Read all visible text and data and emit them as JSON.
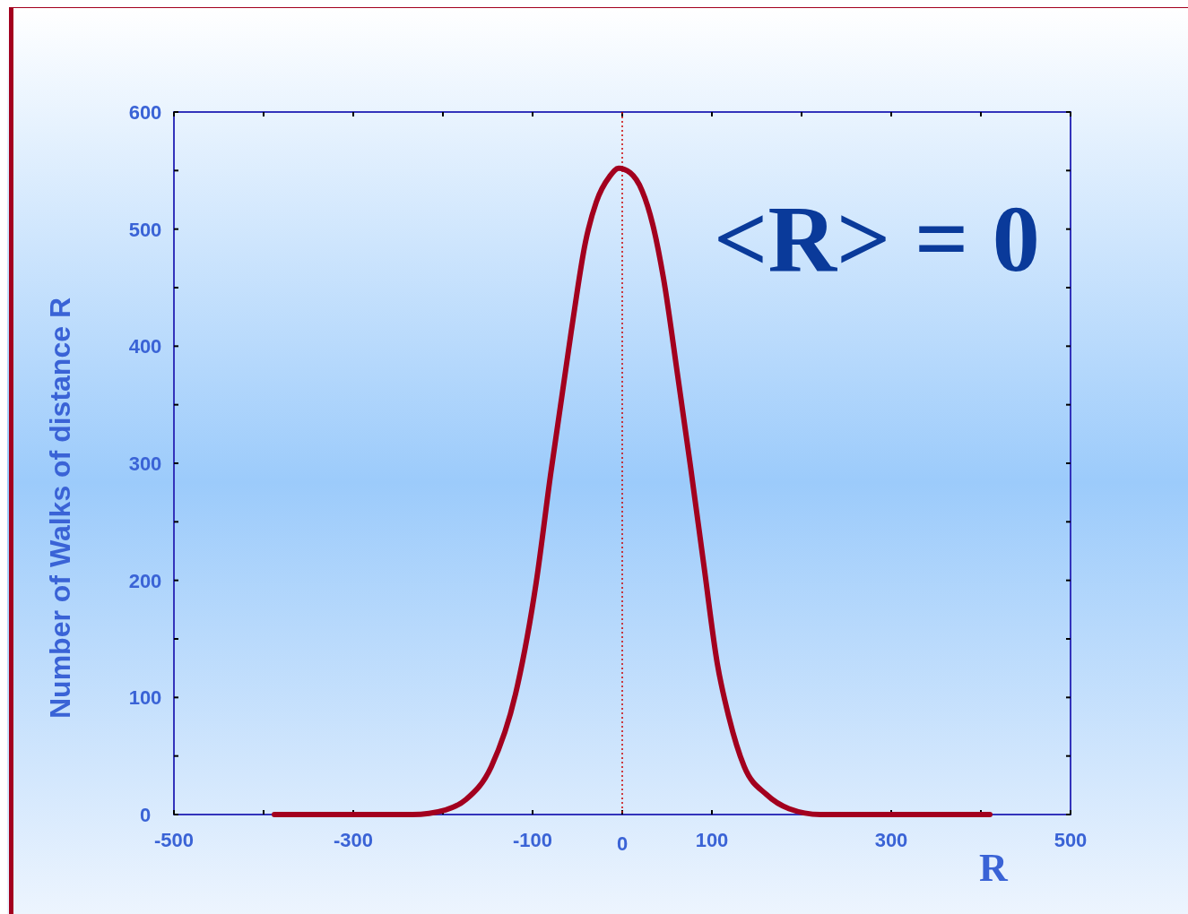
{
  "chart_data": {
    "type": "line",
    "xlabel": "R",
    "ylabel": "Number of Walks of distance R",
    "annotations": [
      "<R> = 0"
    ],
    "x": [
      -388,
      -234,
      -197,
      -174,
      -146,
      -119,
      -96,
      -80,
      -57,
      -41,
      -29,
      -14,
      -4,
      9,
      22,
      34,
      46,
      62,
      76,
      91,
      106,
      119,
      136,
      161,
      186,
      221,
      410
    ],
    "series": [
      {
        "color": "#a3001e",
        "values": [
          0,
          0,
          4,
          13,
          41,
          103,
          198,
          290,
          412,
          489,
          523,
          545,
          552,
          548,
          533,
          504,
          458,
          374,
          298,
          213,
          129,
          83,
          41,
          17,
          5,
          0,
          0
        ]
      }
    ],
    "xlim": [
      -500,
      500
    ],
    "xticks": [
      -500,
      {
        "value": -400,
        "label": null
      },
      -300,
      {
        "value": -200,
        "label": null
      },
      -100,
      0,
      100,
      {
        "value": 200,
        "label": null
      },
      300,
      {
        "value": 400,
        "label": null
      },
      500
    ],
    "ylim": [
      0,
      600
    ],
    "yticks": [
      0,
      {
        "value": 50,
        "label": null
      },
      100,
      {
        "value": 150,
        "label": null
      },
      200,
      {
        "value": 250,
        "label": null
      },
      300,
      {
        "value": 350,
        "label": null
      },
      400,
      {
        "value": 450,
        "label": null
      },
      500,
      {
        "value": 550,
        "label": null
      },
      600
    ],
    "ref_lines": [
      {
        "axis": "x",
        "value": 0,
        "color": "#cc0000",
        "line_style": "dotted"
      }
    ],
    "grid": false,
    "marker": "none",
    "line_style": "solid"
  }
}
